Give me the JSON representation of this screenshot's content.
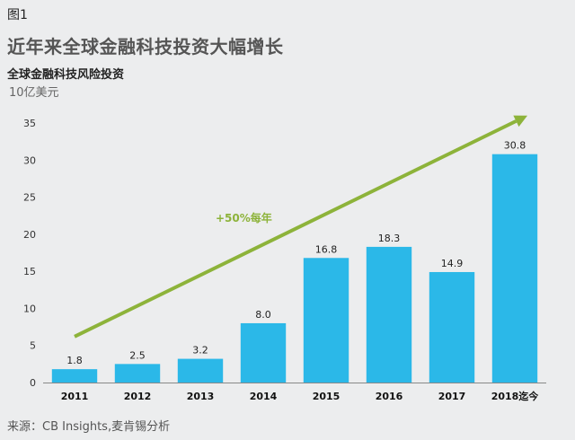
{
  "figure_label": "图1",
  "chart_data": {
    "type": "bar",
    "title": "近年来全球金融科技投资大幅增长",
    "subtitle": "全球金融科技风险投资",
    "ylabel": "10亿美元",
    "categories": [
      "2011",
      "2012",
      "2013",
      "2014",
      "2015",
      "2016",
      "2017",
      "2018迄今"
    ],
    "values": [
      1.8,
      2.5,
      3.2,
      8.0,
      16.8,
      18.3,
      14.9,
      30.8
    ],
    "value_labels": [
      "1.8",
      "2.5",
      "3.2",
      "8.0",
      "16.8",
      "18.3",
      "14.9",
      "30.8"
    ],
    "ylim": [
      0,
      35
    ],
    "yticks": [
      0,
      5,
      10,
      15,
      20,
      25,
      30,
      35
    ],
    "annotation": "+50%每年",
    "bar_color": "#2bb8e8",
    "arrow_color": "#8db33a"
  },
  "source": "来源：CB Insights,麦肯锡分析"
}
